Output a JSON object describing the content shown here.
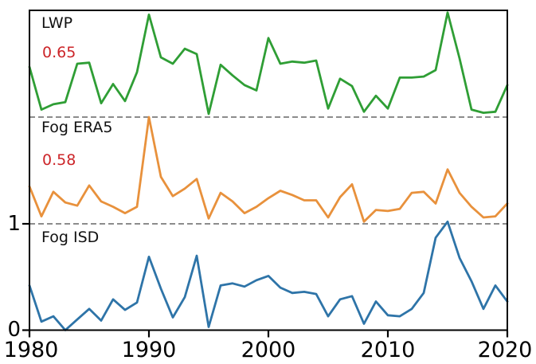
{
  "figure": {
    "x_tick_labels": [
      "1980",
      "1990",
      "2000",
      "2010",
      "2020"
    ],
    "y_tick_labels": [
      "1",
      "0"
    ]
  },
  "colors": {
    "separator": "#666666",
    "axis": "#000000",
    "corr_text": "#cc2529"
  },
  "chart_data": {
    "type": "line",
    "layout": "three vertically stacked panels sharing one x-axis, separated by horizontal dashed lines; each panel spans 0-1",
    "xlim": [
      1980,
      2020
    ],
    "x_ticks": [
      1980,
      1990,
      2000,
      2010,
      2020
    ],
    "panel_ylim": [
      0,
      1
    ],
    "y_axis_tick_values": [
      1,
      0
    ],
    "grid": false,
    "legend": "none",
    "x": [
      1980,
      1981,
      1982,
      1983,
      1984,
      1985,
      1986,
      1987,
      1988,
      1989,
      1990,
      1991,
      1992,
      1993,
      1994,
      1995,
      1996,
      1997,
      1998,
      1999,
      2000,
      2001,
      2002,
      2003,
      2004,
      2005,
      2006,
      2007,
      2008,
      2009,
      2010,
      2011,
      2012,
      2013,
      2014,
      2015,
      2016,
      2017,
      2018,
      2019,
      2020
    ],
    "series": [
      {
        "label": "LWP",
        "corr": "0.65",
        "color": "#2f9e35",
        "panel": 0,
        "values": [
          0.47,
          0.07,
          0.12,
          0.14,
          0.5,
          0.51,
          0.13,
          0.31,
          0.15,
          0.42,
          0.96,
          0.56,
          0.5,
          0.64,
          0.59,
          0.03,
          0.49,
          0.39,
          0.3,
          0.25,
          0.74,
          0.5,
          0.52,
          0.51,
          0.53,
          0.08,
          0.36,
          0.29,
          0.05,
          0.2,
          0.08,
          0.37,
          0.37,
          0.38,
          0.44,
          0.98,
          0.55,
          0.07,
          0.04,
          0.05,
          0.3
        ]
      },
      {
        "label": "Fog ERA5",
        "corr": "0.58",
        "color": "#e8913c",
        "panel": 1,
        "values": [
          0.35,
          0.07,
          0.3,
          0.2,
          0.17,
          0.36,
          0.21,
          0.16,
          0.1,
          0.16,
          1.0,
          0.44,
          0.26,
          0.33,
          0.42,
          0.05,
          0.29,
          0.21,
          0.1,
          0.16,
          0.24,
          0.31,
          0.27,
          0.22,
          0.22,
          0.06,
          0.25,
          0.37,
          0.02,
          0.13,
          0.12,
          0.14,
          0.29,
          0.3,
          0.19,
          0.51,
          0.29,
          0.16,
          0.06,
          0.07,
          0.19
        ]
      },
      {
        "label": "Fog ISD",
        "color": "#2e74a8",
        "panel": 2,
        "values": [
          0.42,
          0.08,
          0.13,
          0.0,
          0.1,
          0.2,
          0.09,
          0.29,
          0.19,
          0.26,
          0.69,
          0.39,
          0.12,
          0.31,
          0.7,
          0.03,
          0.42,
          0.44,
          0.41,
          0.47,
          0.51,
          0.4,
          0.35,
          0.36,
          0.34,
          0.13,
          0.29,
          0.32,
          0.06,
          0.27,
          0.14,
          0.13,
          0.2,
          0.35,
          0.87,
          1.02,
          0.68,
          0.46,
          0.2,
          0.42,
          0.27
        ]
      }
    ]
  }
}
